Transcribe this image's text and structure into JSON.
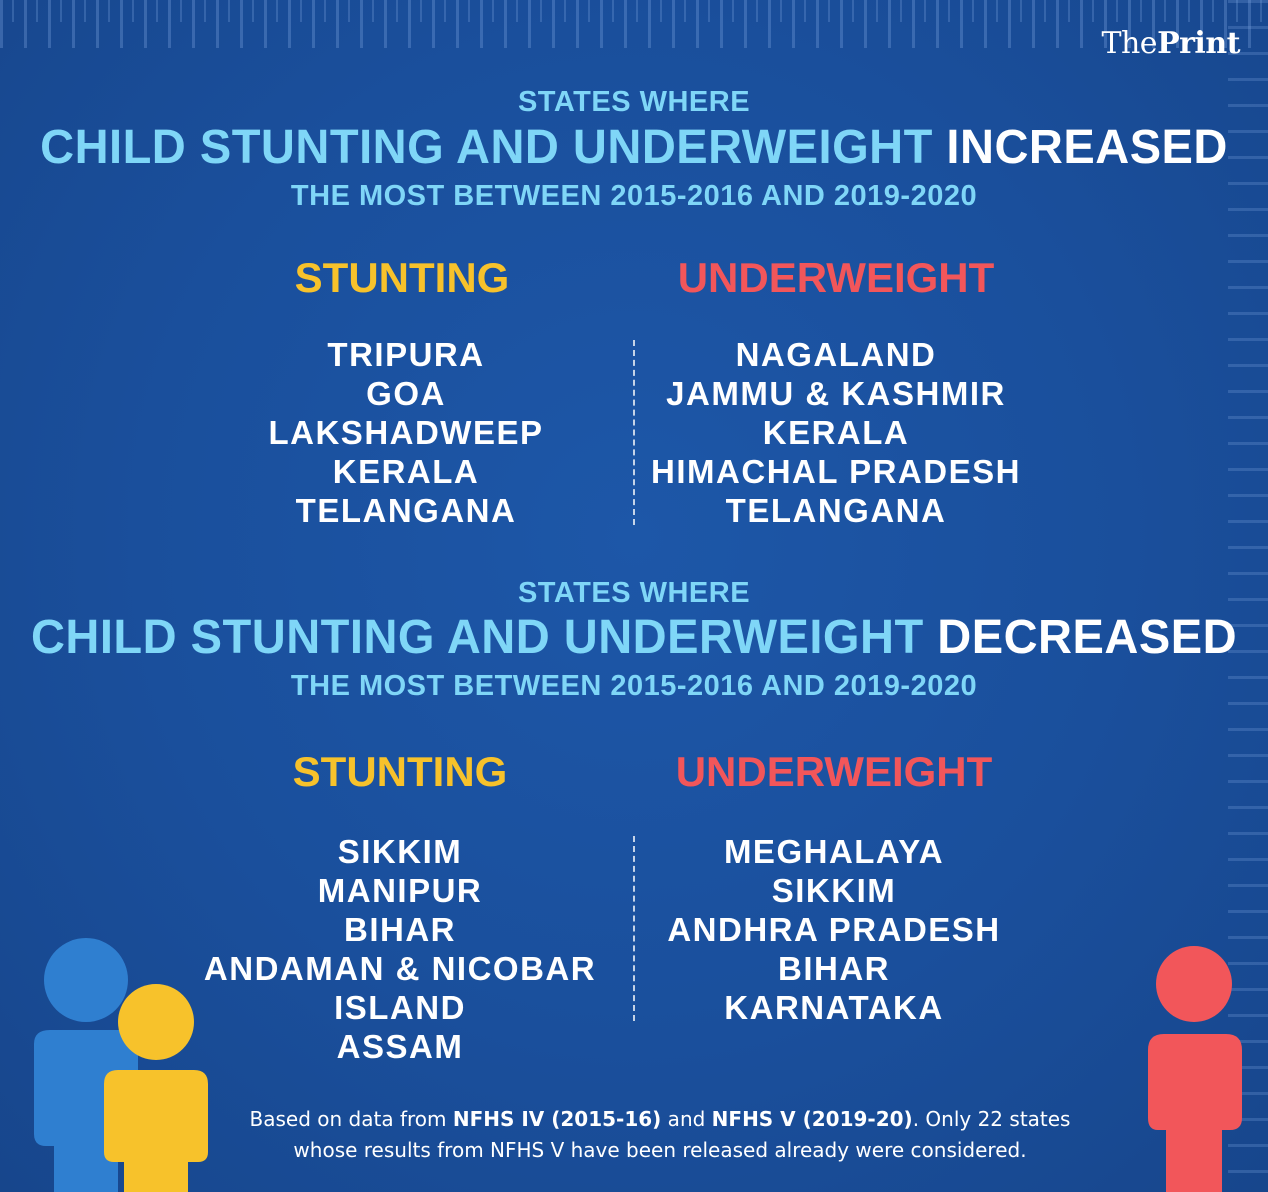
{
  "brand": {
    "pre": "The",
    "bold": "Print"
  },
  "increased": {
    "kicker": "STATES WHERE",
    "title_main": "CHILD STUNTING AND UNDERWEIGHT",
    "title_accent": "INCREASED",
    "subtitle": "THE MOST BETWEEN 2015-2016 AND 2019-2020",
    "stunting_heading": "STUNTING",
    "underweight_heading": "UNDERWEIGHT",
    "stunting": [
      "TRIPURA",
      "GOA",
      "LAKSHADWEEP",
      "KERALA",
      "TELANGANA"
    ],
    "underweight": [
      "NAGALAND",
      "JAMMU & KASHMIR",
      "KERALA",
      "HIMACHAL PRADESH",
      "TELANGANA"
    ]
  },
  "decreased": {
    "kicker": "STATES WHERE",
    "title_main": "CHILD STUNTING AND UNDERWEIGHT",
    "title_accent": "DECREASED",
    "subtitle": "THE MOST BETWEEN 2015-2016 AND 2019-2020",
    "stunting_heading": "STUNTING",
    "underweight_heading": "UNDERWEIGHT",
    "stunting": [
      "SIKKIM",
      "MANIPUR",
      "BIHAR",
      "ANDAMAN & NICOBAR ISLAND",
      "ASSAM"
    ],
    "underweight": [
      "MEGHALAYA",
      "SIKKIM",
      "ANDHRA PRADESH",
      "BIHAR",
      "KARNATAKA"
    ]
  },
  "footnote": {
    "p1": "Based on data from ",
    "b1": "NFHS IV (2015-16)",
    "p2": " and ",
    "b2": "NFHS V (2019-20)",
    "p3": ". Only 22 states",
    "line2": "whose results from NFHS V have been released already were considered."
  },
  "colors": {
    "background": "#1a4f9c",
    "heading_blue": "#7fd6f7",
    "stunting": "#f7c22b",
    "underweight": "#f2565a",
    "figure_blue": "#2f7fd0",
    "figure_yellow": "#f7c22b",
    "figure_red": "#f2565a"
  },
  "icons": [
    "adult-figure-icon",
    "child-figure-icon",
    "child-figure-red-icon"
  ]
}
